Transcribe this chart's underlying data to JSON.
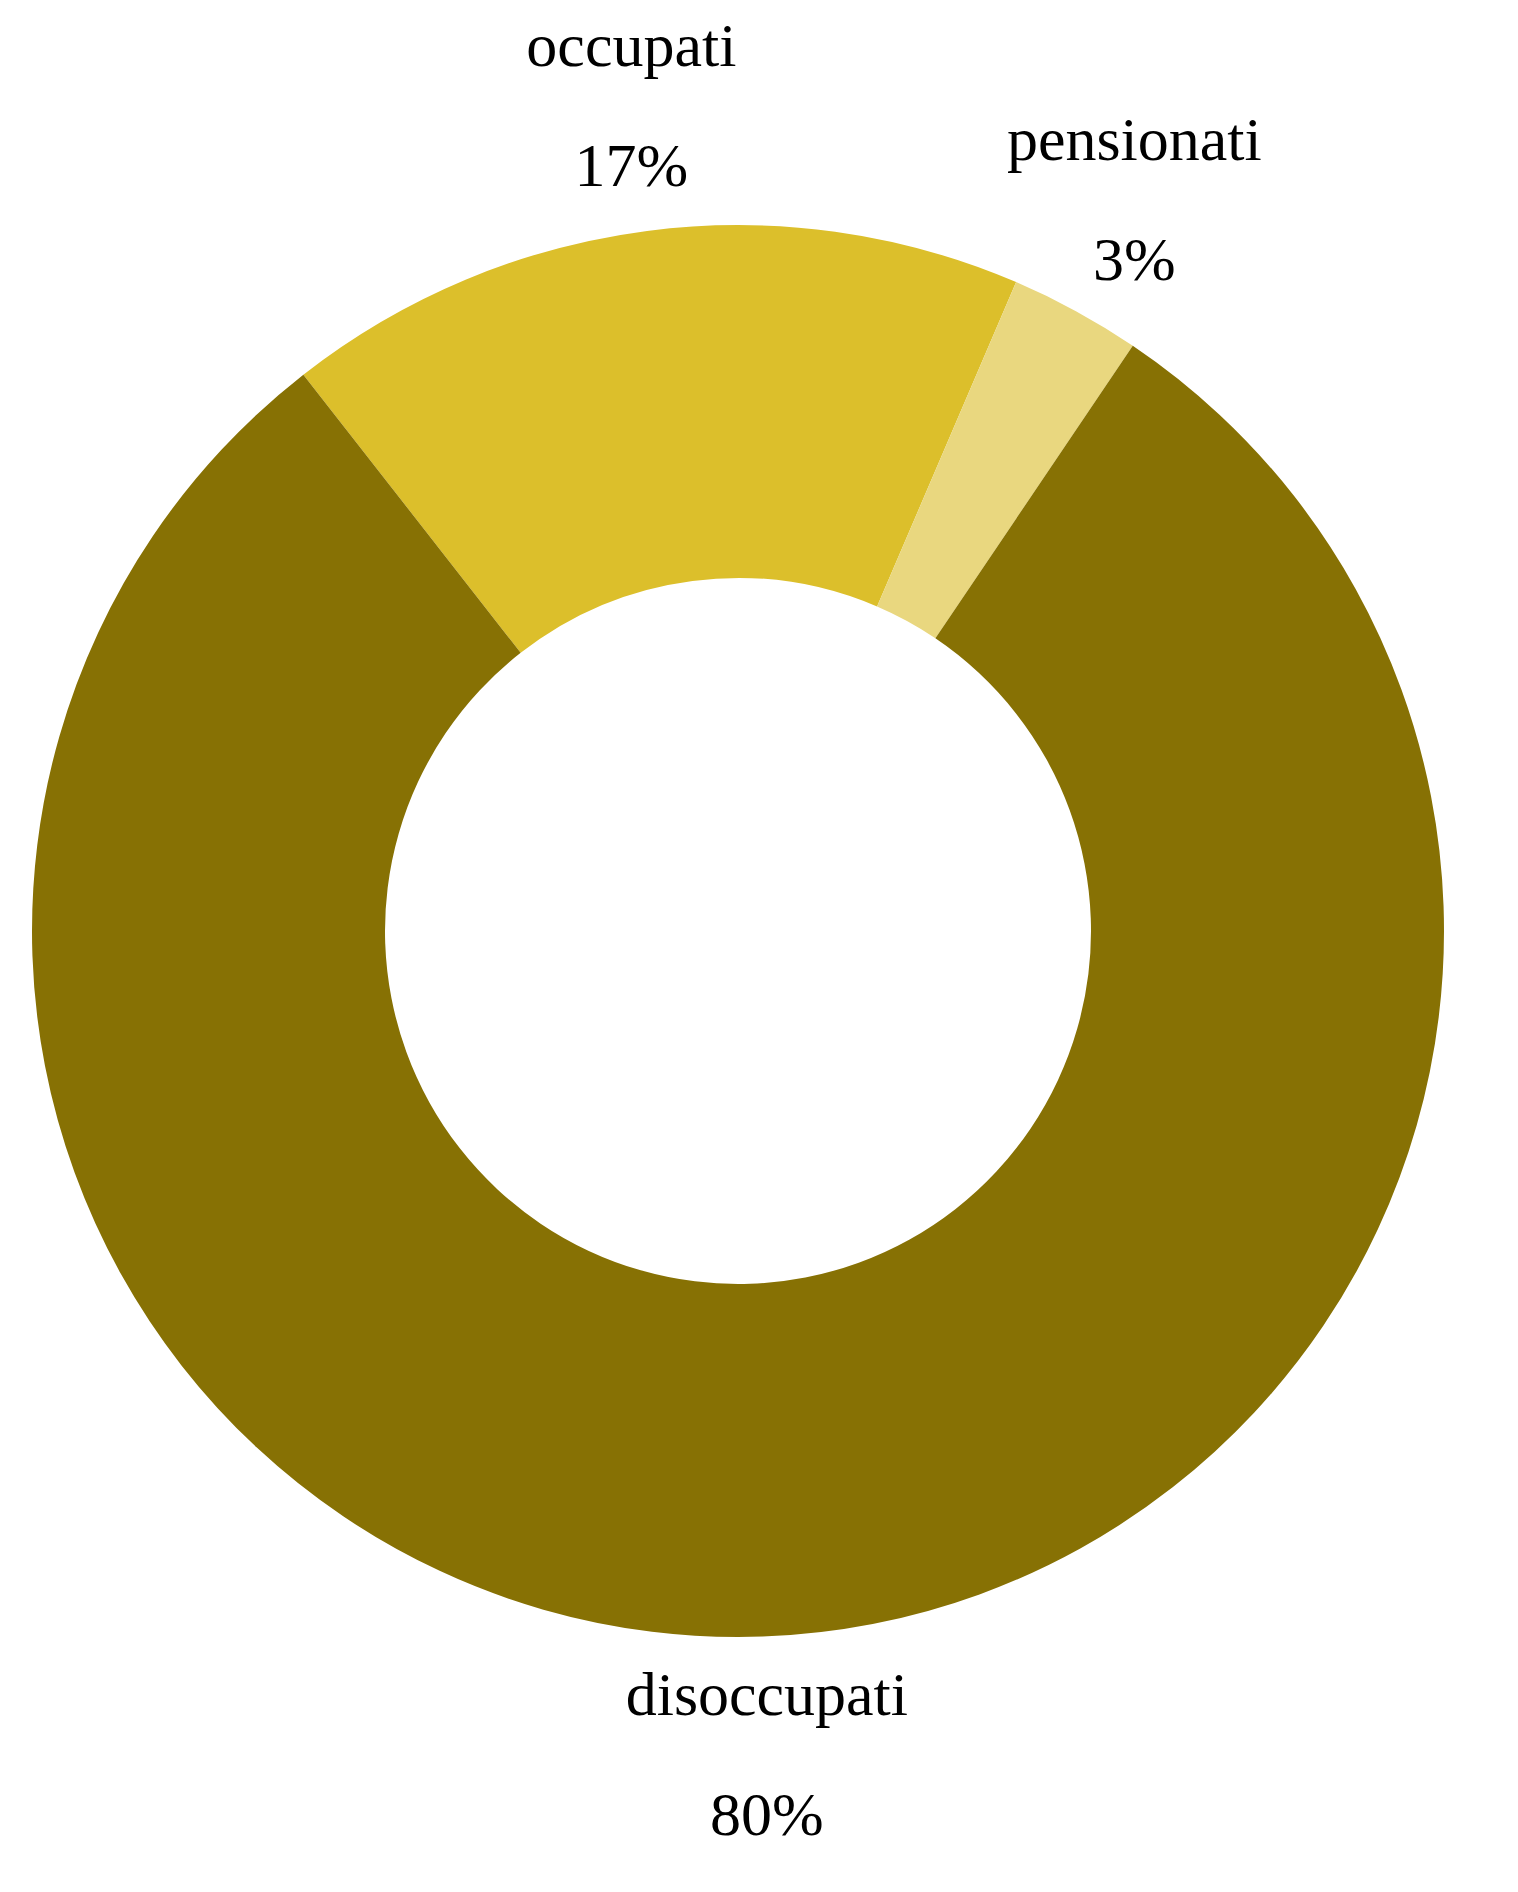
{
  "chart_data": {
    "type": "donut",
    "categories": [
      "occupati",
      "pensionati",
      "disoccupati"
    ],
    "values": [
      17,
      3,
      80
    ],
    "value_labels": [
      "17%",
      "3%",
      "80%"
    ],
    "colors": [
      "#dcbf2b",
      "#e9d77f",
      "#877104"
    ],
    "legend": false
  }
}
